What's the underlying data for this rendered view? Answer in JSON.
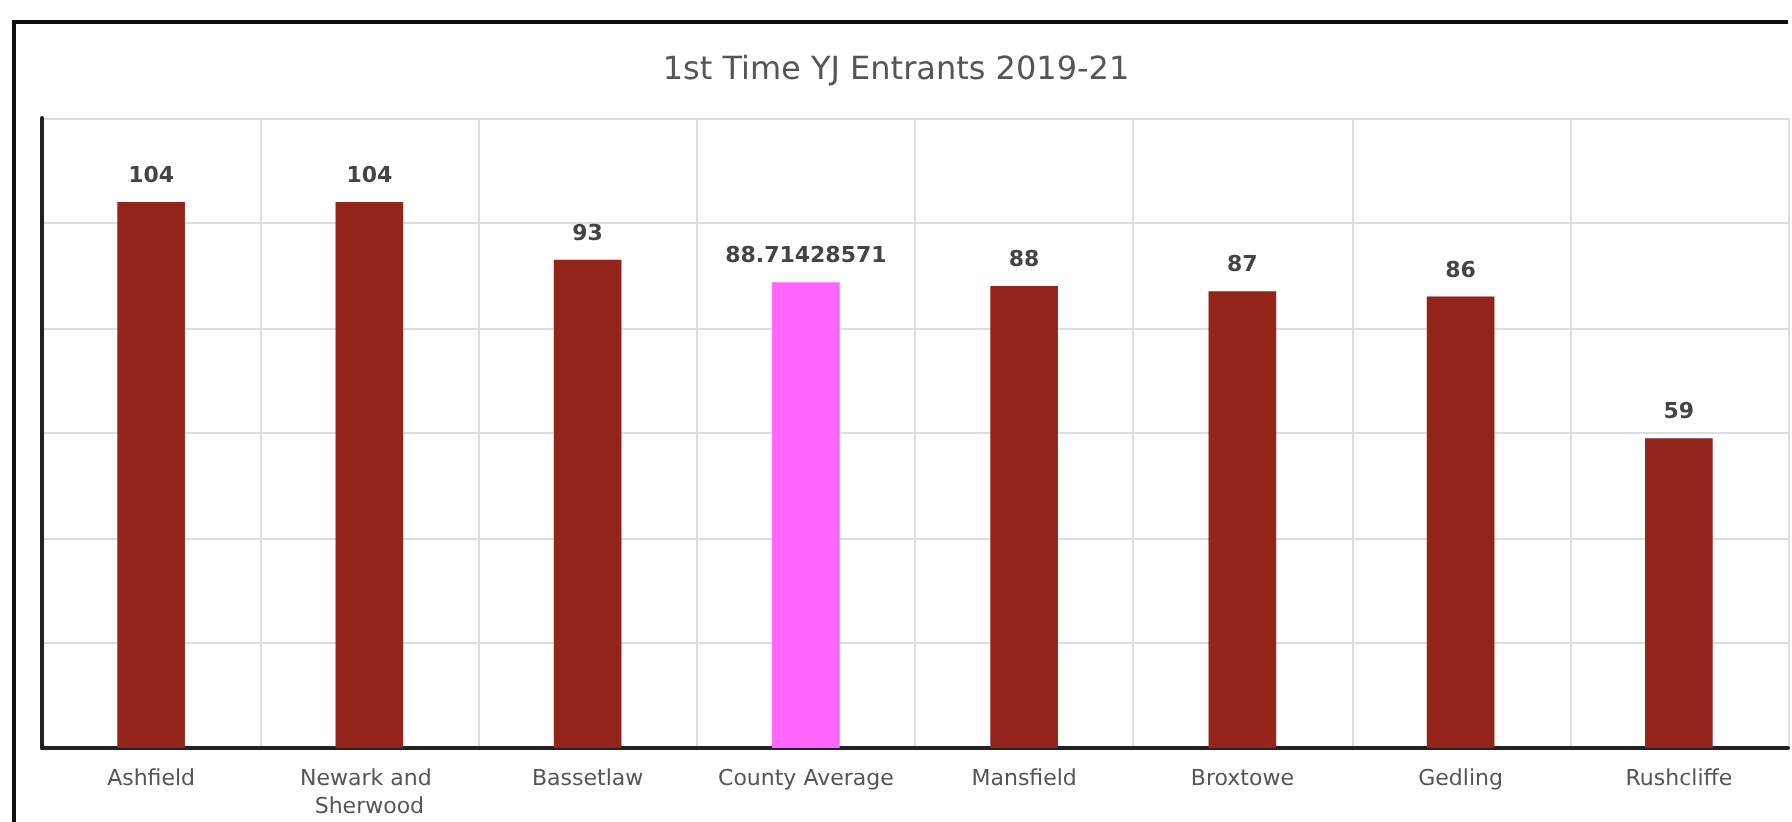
{
  "chart_data": {
    "type": "bar",
    "title": "1st Time YJ Entrants 2019-21",
    "categories": [
      "Ashfield",
      "Newark and Sherwood",
      "Bassetlaw",
      "County Average",
      "Mansfield",
      "Broxtowe",
      "Gedling",
      "Rushcliffe"
    ],
    "values": [
      104,
      104,
      93,
      88.71428571,
      88,
      87,
      86,
      59
    ],
    "colors": [
      "#92241a",
      "#92241a",
      "#92241a",
      "#ff66ff",
      "#92241a",
      "#92241a",
      "#92241a",
      "#92241a"
    ],
    "ylim": [
      0,
      120
    ],
    "yticks": [
      {
        "value": 0,
        "label": null
      },
      {
        "value": 20,
        "label": null
      },
      {
        "value": 40,
        "label": null
      },
      {
        "value": 60,
        "label": null
      },
      {
        "value": 80,
        "label": null
      },
      {
        "value": 100,
        "label": null
      },
      {
        "value": 120,
        "label": null
      }
    ],
    "tick_labels": "x",
    "grid": true,
    "data_labels": true
  }
}
